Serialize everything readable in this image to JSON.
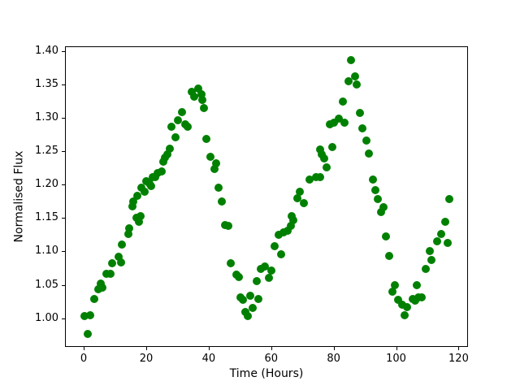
{
  "figure": {
    "background": "#ffffff",
    "spine_color": "#000000",
    "tick_color": "#000000",
    "text_color": "#000000"
  },
  "chart_data": {
    "type": "scatter",
    "title": "",
    "xlabel": "Time (Hours)",
    "ylabel": "Normalised Flux",
    "legend": null,
    "grid": false,
    "marker_color": "#008000",
    "marker_diameter_px": 10,
    "xlim": [
      -6,
      123
    ],
    "ylim": [
      0.957,
      1.407
    ],
    "x_tick_values": [
      0,
      20,
      40,
      60,
      80,
      100,
      120
    ],
    "x_tick_labels": [
      "0",
      "20",
      "40",
      "60",
      "80",
      "100",
      "120"
    ],
    "y_tick_values": [
      1.0,
      1.05,
      1.1,
      1.15,
      1.2,
      1.25,
      1.3,
      1.35,
      1.4
    ],
    "y_tick_labels": [
      "1.00",
      "1.05",
      "1.10",
      "1.15",
      "1.20",
      "1.25",
      "1.30",
      "1.35",
      "1.40"
    ],
    "points": [
      [
        0.0,
        1.004
      ],
      [
        1.0,
        0.978
      ],
      [
        1.8,
        1.006
      ],
      [
        3.1,
        1.03
      ],
      [
        4.4,
        1.045
      ],
      [
        5.2,
        1.053
      ],
      [
        5.7,
        1.047
      ],
      [
        7.0,
        1.068
      ],
      [
        8.3,
        1.068
      ],
      [
        8.8,
        1.084
      ],
      [
        10.9,
        1.093
      ],
      [
        11.7,
        1.085
      ],
      [
        12.0,
        1.112
      ],
      [
        14.0,
        1.127
      ],
      [
        14.3,
        1.136
      ],
      [
        15.3,
        1.169
      ],
      [
        15.6,
        1.176
      ],
      [
        16.6,
        1.151
      ],
      [
        16.9,
        1.185
      ],
      [
        17.4,
        1.146
      ],
      [
        17.9,
        1.154
      ],
      [
        18.2,
        1.197
      ],
      [
        19.3,
        1.191
      ],
      [
        19.7,
        1.206
      ],
      [
        20.8,
        1.203
      ],
      [
        21.3,
        1.199
      ],
      [
        21.8,
        1.213
      ],
      [
        22.6,
        1.212
      ],
      [
        23.4,
        1.219
      ],
      [
        24.7,
        1.221
      ],
      [
        25.2,
        1.236
      ],
      [
        25.7,
        1.242
      ],
      [
        26.5,
        1.246
      ],
      [
        27.3,
        1.255
      ],
      [
        27.8,
        1.288
      ],
      [
        29.1,
        1.272
      ],
      [
        29.9,
        1.297
      ],
      [
        31.2,
        1.31
      ],
      [
        32.2,
        1.292
      ],
      [
        33.0,
        1.288
      ],
      [
        34.3,
        1.34
      ],
      [
        35.1,
        1.333
      ],
      [
        36.4,
        1.345
      ],
      [
        37.4,
        1.337
      ],
      [
        37.7,
        1.328
      ],
      [
        38.2,
        1.316
      ],
      [
        39.0,
        1.27
      ],
      [
        40.3,
        1.243
      ],
      [
        41.6,
        1.224
      ],
      [
        42.1,
        1.233
      ],
      [
        42.9,
        1.197
      ],
      [
        44.0,
        1.176
      ],
      [
        44.9,
        1.141
      ],
      [
        45.9,
        1.14
      ],
      [
        46.8,
        1.084
      ],
      [
        48.6,
        1.066
      ],
      [
        49.4,
        1.063
      ],
      [
        49.9,
        1.033
      ],
      [
        50.8,
        1.029
      ],
      [
        51.5,
        1.011
      ],
      [
        52.2,
        1.005
      ],
      [
        53.0,
        1.035
      ],
      [
        53.8,
        1.017
      ],
      [
        55.1,
        1.057
      ],
      [
        55.6,
        1.03
      ],
      [
        56.4,
        1.075
      ],
      [
        57.7,
        1.079
      ],
      [
        59.0,
        1.061
      ],
      [
        59.7,
        1.073
      ],
      [
        60.8,
        1.109
      ],
      [
        62.1,
        1.126
      ],
      [
        62.9,
        1.097
      ],
      [
        63.6,
        1.13
      ],
      [
        64.9,
        1.132
      ],
      [
        66.0,
        1.139
      ],
      [
        66.3,
        1.154
      ],
      [
        66.8,
        1.148
      ],
      [
        68.1,
        1.181
      ],
      [
        68.9,
        1.191
      ],
      [
        70.1,
        1.173
      ],
      [
        72.0,
        1.209
      ],
      [
        74.1,
        1.213
      ],
      [
        75.3,
        1.212
      ],
      [
        75.5,
        1.254
      ],
      [
        75.9,
        1.246
      ],
      [
        76.7,
        1.24
      ],
      [
        77.6,
        1.227
      ],
      [
        78.6,
        1.291
      ],
      [
        79.2,
        1.258
      ],
      [
        79.7,
        1.294
      ],
      [
        81.3,
        1.3
      ],
      [
        82.7,
        1.325
      ],
      [
        83.2,
        1.294
      ],
      [
        84.6,
        1.356
      ],
      [
        85.3,
        1.387
      ],
      [
        86.6,
        1.363
      ],
      [
        87.2,
        1.351
      ],
      [
        88.2,
        1.309
      ],
      [
        89.0,
        1.285
      ],
      [
        90.1,
        1.267
      ],
      [
        90.9,
        1.248
      ],
      [
        92.2,
        1.209
      ],
      [
        93.2,
        1.193
      ],
      [
        94.0,
        1.179
      ],
      [
        94.8,
        1.16
      ],
      [
        95.8,
        1.167
      ],
      [
        96.6,
        1.124
      ],
      [
        97.4,
        1.094
      ],
      [
        98.6,
        1.041
      ],
      [
        99.4,
        1.051
      ],
      [
        100.5,
        1.029
      ],
      [
        101.8,
        1.021
      ],
      [
        102.5,
        1.006
      ],
      [
        103.3,
        1.018
      ],
      [
        105.1,
        1.03
      ],
      [
        105.8,
        1.027
      ],
      [
        106.4,
        1.051
      ],
      [
        107.0,
        1.033
      ],
      [
        107.8,
        1.033
      ],
      [
        109.3,
        1.075
      ],
      [
        110.6,
        1.102
      ],
      [
        111.1,
        1.088
      ],
      [
        112.9,
        1.116
      ],
      [
        114.2,
        1.127
      ],
      [
        115.5,
        1.146
      ],
      [
        116.3,
        1.114
      ],
      [
        116.8,
        1.179
      ]
    ]
  }
}
